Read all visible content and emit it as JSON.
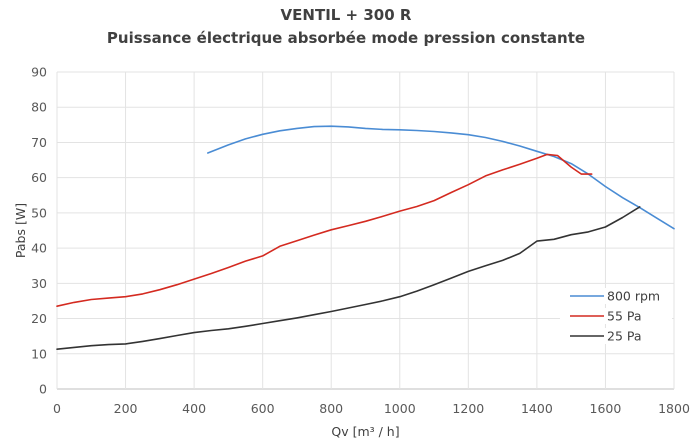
{
  "chart_data": {
    "type": "line",
    "title": "VENTIL + 300 R",
    "subtitle": "Puissance électrique absorbée mode pression constante",
    "xlabel": "Qv [m³ / h]",
    "ylabel": "Pabs [W]",
    "xlim": [
      0,
      1800
    ],
    "ylim": [
      0,
      90
    ],
    "xticks": [
      0,
      200,
      400,
      600,
      800,
      1000,
      1200,
      1400,
      1600,
      1800
    ],
    "yticks": [
      0,
      10,
      20,
      30,
      40,
      50,
      60,
      70,
      80,
      90
    ],
    "grid": true,
    "legend_position": "right",
    "series": [
      {
        "name": "800 rpm",
        "color": "#4A8CD4",
        "x": [
          440,
          500,
          550,
          600,
          650,
          700,
          750,
          800,
          850,
          900,
          950,
          1000,
          1050,
          1100,
          1150,
          1200,
          1250,
          1300,
          1350,
          1400,
          1450,
          1500,
          1550,
          1600,
          1650,
          1700,
          1750,
          1800
        ],
        "y": [
          67,
          69.3,
          71,
          72.3,
          73.3,
          74,
          74.5,
          74.6,
          74.4,
          74,
          73.7,
          73.6,
          73.4,
          73.1,
          72.7,
          72.2,
          71.4,
          70.3,
          69,
          67.5,
          66,
          64,
          61,
          57.5,
          54.3,
          51.5,
          48.5,
          45.5
        ]
      },
      {
        "name": "55 Pa",
        "color": "#D42A20",
        "x": [
          0,
          50,
          100,
          150,
          200,
          250,
          300,
          350,
          400,
          450,
          500,
          550,
          600,
          650,
          700,
          750,
          800,
          850,
          900,
          950,
          1000,
          1050,
          1100,
          1150,
          1200,
          1250,
          1300,
          1350,
          1400,
          1430,
          1460,
          1500,
          1530,
          1560
        ],
        "y": [
          23.5,
          24.6,
          25.4,
          25.8,
          26.2,
          27,
          28.2,
          29.6,
          31.2,
          32.8,
          34.5,
          36.3,
          37.8,
          40.5,
          42.1,
          43.7,
          45.2,
          46.4,
          47.6,
          49,
          50.5,
          51.8,
          53.5,
          55.8,
          58,
          60.5,
          62.2,
          63.8,
          65.5,
          66.6,
          66.3,
          63,
          61,
          61
        ]
      },
      {
        "name": "25 Pa",
        "color": "#333333",
        "x": [
          0,
          50,
          100,
          150,
          200,
          250,
          300,
          350,
          400,
          450,
          500,
          550,
          600,
          650,
          700,
          750,
          800,
          850,
          900,
          950,
          1000,
          1050,
          1100,
          1150,
          1200,
          1250,
          1300,
          1350,
          1400,
          1450,
          1500,
          1550,
          1600,
          1650,
          1700
        ],
        "y": [
          11.3,
          11.8,
          12.3,
          12.6,
          12.8,
          13.5,
          14.3,
          15.2,
          16,
          16.6,
          17.1,
          17.8,
          18.6,
          19.4,
          20.2,
          21.1,
          22,
          23,
          24,
          25,
          26.2,
          27.8,
          29.6,
          31.5,
          33.4,
          35,
          36.5,
          38.5,
          42,
          42.5,
          43.8,
          44.6,
          46,
          48.7,
          51.7
        ]
      }
    ]
  }
}
